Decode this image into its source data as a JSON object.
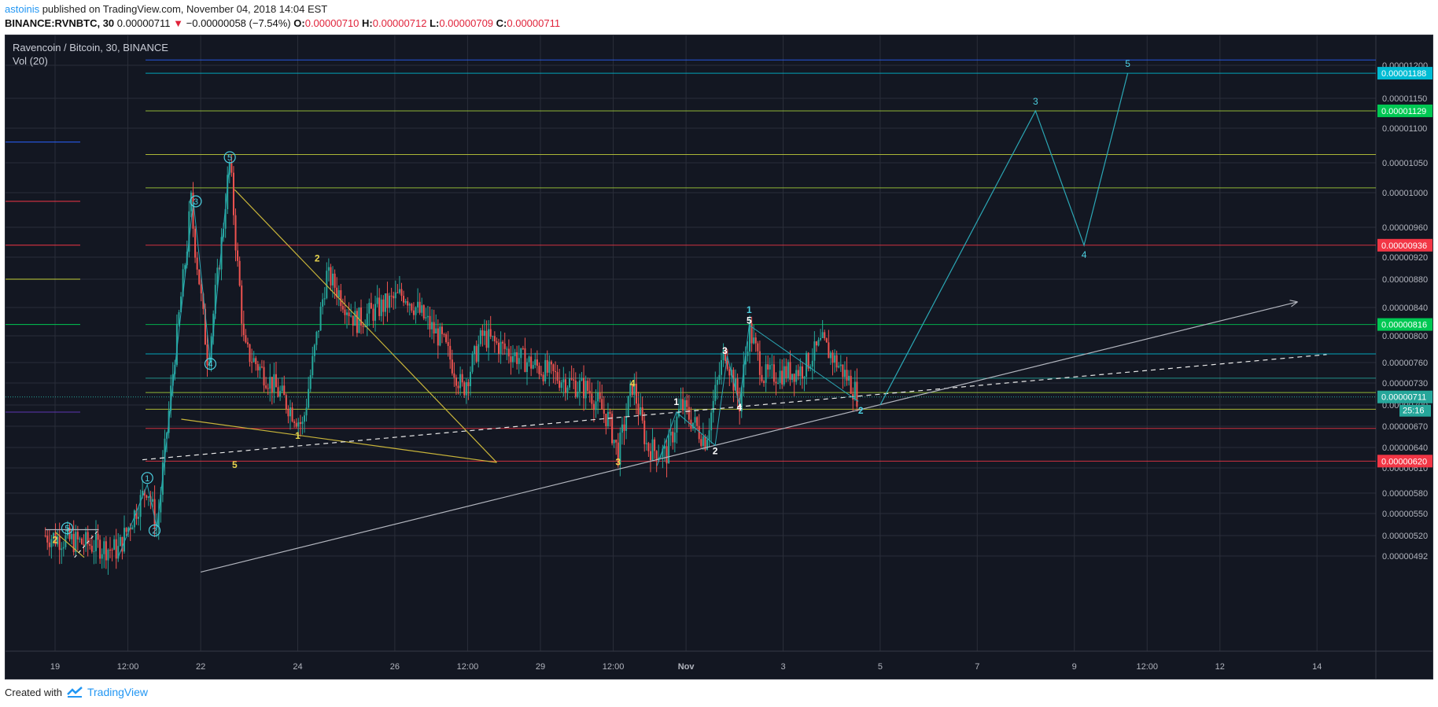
{
  "header": {
    "author": "astoinis",
    "published": " published on TradingView.com, November 04, 2018 14:04 EST"
  },
  "ticker": {
    "symbol": "BINANCE:RVNBTC, 30",
    "last": "0.00000711",
    "arrow": "▼",
    "change": "−0.00000058 (−7.54%)",
    "o_label": "O:",
    "o": "0.00000710",
    "h_label": "H:",
    "h": "0.00000712",
    "l_label": "L:",
    "l": "0.00000709",
    "c_label": "C:",
    "c": "0.00000711"
  },
  "chart_title": "Ravencoin / Bitcoin, 30, BINANCE",
  "volume_label": "Vol (20)",
  "footer": {
    "created_with": "Created with",
    "brand": "TradingView"
  },
  "colors": {
    "background": "#131722",
    "grid": "#2a2e39",
    "up": "#26a69a",
    "down": "#ef5350",
    "trend_yellow": "#c9b53a",
    "wave_teal": "#2ba7b5",
    "trend_white": "#b2b5be"
  },
  "chart_data": {
    "type": "line",
    "pair": "RVNBTC",
    "timeframe": "30",
    "exchange": "BINANCE",
    "y_ticks": [
      "0.00001200",
      "0.00001150",
      "0.00001100",
      "0.00001050",
      "0.00001000",
      "0.00000960",
      "0.00000920",
      "0.00000880",
      "0.00000840",
      "0.00000800",
      "0.00000760",
      "0.00000730",
      "0.00000700",
      "0.00000670",
      "0.00000640",
      "0.00000610",
      "0.00000580",
      "0.00000550",
      "0.00000520",
      "0.00000492"
    ],
    "x_ticks": [
      {
        "label": "19",
        "day": 19.0
      },
      {
        "label": "12:00",
        "day": 20.5
      },
      {
        "label": "22",
        "day": 22.0
      },
      {
        "label": "24",
        "day": 24.0
      },
      {
        "label": "26",
        "day": 26.0
      },
      {
        "label": "12:00",
        "day": 27.5
      },
      {
        "label": "29",
        "day": 29.0
      },
      {
        "label": "12:00",
        "day": 30.5
      },
      {
        "label": "Nov",
        "day": 32.0
      },
      {
        "label": "3",
        "day": 34.0
      },
      {
        "label": "5",
        "day": 36.0
      },
      {
        "label": "7",
        "day": 38.0
      },
      {
        "label": "9",
        "day": 40.0
      },
      {
        "label": "12:00",
        "day": 41.5
      },
      {
        "label": "12",
        "day": 43.0
      },
      {
        "label": "14",
        "day": 45.0
      }
    ],
    "price_labels": [
      {
        "value": "0.00001188",
        "color": "#00bcd4"
      },
      {
        "value": "0.00001129",
        "color": "#00c853"
      },
      {
        "value": "0.00000936",
        "color": "#f23645"
      },
      {
        "value": "0.00000816",
        "color": "#00c853"
      },
      {
        "value": "0.00000711",
        "color": "#26a69a"
      },
      {
        "value": "0.00000620",
        "color": "#f23645"
      }
    ],
    "countdown": "25:16",
    "horizontal_levels": [
      {
        "price": 1.208e-05,
        "color": "#2962ff"
      },
      {
        "price": 1.188e-05,
        "color": "#00bcd4"
      },
      {
        "price": 1.129e-05,
        "color": "#a6d23a"
      },
      {
        "price": 1.062e-05,
        "color": "#c6d23a"
      },
      {
        "price": 1.008e-05,
        "color": "#a6d23a"
      },
      {
        "price": 9.36e-06,
        "color": "#f23645"
      },
      {
        "price": 8.16e-06,
        "color": "#00c853"
      },
      {
        "price": 7.73e-06,
        "color": "#00bcd4"
      },
      {
        "price": 7.37e-06,
        "color": "#26a69a"
      },
      {
        "price": 7.17e-06,
        "color": "#a6d23a"
      },
      {
        "price": 6.94e-06,
        "color": "#c6d23a"
      },
      {
        "price": 6.67e-06,
        "color": "#f23645"
      },
      {
        "price": 6.2e-06,
        "color": "#f23645"
      }
    ],
    "projection_wave": [
      {
        "day": 36.0,
        "price": 7e-06,
        "label": ""
      },
      {
        "day": 39.2,
        "price": 1.129e-05,
        "label": "3"
      },
      {
        "day": 40.2,
        "price": 9.36e-06,
        "label": "4"
      },
      {
        "day": 41.1,
        "price": 1.188e-05,
        "label": "5"
      }
    ],
    "wave_labels": [
      {
        "text": "5",
        "day": 19.25,
        "price": 5.3e-06,
        "style": "circle"
      },
      {
        "text": "2",
        "day": 19.0,
        "price": 5.1e-06,
        "style": "yellow"
      },
      {
        "text": "1",
        "day": 20.9,
        "price": 5.98e-06,
        "style": "circle"
      },
      {
        "text": "2",
        "day": 21.05,
        "price": 5.27e-06,
        "style": "circle"
      },
      {
        "text": "3",
        "day": 21.9,
        "price": 9.9e-06,
        "style": "circle"
      },
      {
        "text": "4",
        "day": 22.2,
        "price": 7.58e-06,
        "style": "circle"
      },
      {
        "text": "5",
        "day": 22.6,
        "price": 1.058e-05,
        "style": "circle"
      },
      {
        "text": "2",
        "day": 24.4,
        "price": 9.12e-06,
        "style": "yellow"
      },
      {
        "text": "1",
        "day": 24.0,
        "price": 6.52e-06,
        "style": "yellow"
      },
      {
        "text": "5",
        "day": 22.7,
        "price": 6.1e-06,
        "style": "yellow"
      },
      {
        "text": "3",
        "day": 30.6,
        "price": 6.14e-06,
        "style": "yellow"
      },
      {
        "text": "4",
        "day": 30.9,
        "price": 7.25e-06,
        "style": "yellow"
      },
      {
        "text": "1",
        "day": 31.8,
        "price": 7e-06,
        "style": "white"
      },
      {
        "text": "2",
        "day": 32.6,
        "price": 6.3e-06,
        "style": "white"
      },
      {
        "text": "3",
        "day": 32.8,
        "price": 7.73e-06,
        "style": "white"
      },
      {
        "text": "4",
        "day": 33.1,
        "price": 6.92e-06,
        "style": "white"
      },
      {
        "text": "5",
        "day": 33.3,
        "price": 8.17e-06,
        "style": "white"
      },
      {
        "text": "1",
        "day": 33.3,
        "price": 8.32e-06,
        "style": "teal"
      },
      {
        "text": "2",
        "day": 35.6,
        "price": 6.88e-06,
        "style": "teal"
      }
    ]
  }
}
